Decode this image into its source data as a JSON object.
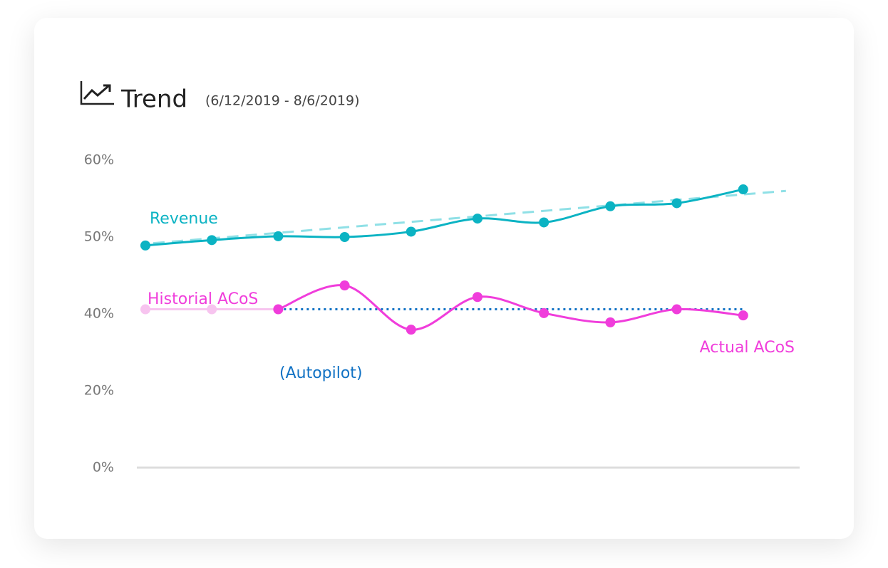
{
  "chart_data": {
    "type": "line",
    "title": "Trend",
    "subtitle": "(6/12/2019 - 8/6/2019)",
    "categories": [
      null,
      null,
      null,
      null,
      null,
      null,
      null,
      null,
      null,
      null
    ],
    "ylim": [
      0,
      60
    ],
    "yticks": [
      {
        "value": 0,
        "label": "0%"
      },
      {
        "value": 20,
        "label": "20%"
      },
      {
        "value": 40,
        "label": "40%"
      },
      {
        "value": 50,
        "label": "50%"
      },
      {
        "value": 60,
        "label": "60%"
      }
    ],
    "series": [
      {
        "name": "Revenue",
        "color": "#0bb3c3",
        "values": [
          48.9,
          49.6,
          50.1,
          50.0,
          50.7,
          52.4,
          51.9,
          54.0,
          54.4,
          56.2
        ]
      },
      {
        "name": "Historial ACoS",
        "color": "#f7c4ef",
        "values": [
          40.6,
          40.6,
          40.6,
          null,
          null,
          null,
          null,
          null,
          null,
          null
        ]
      },
      {
        "name": "(Autopilot)",
        "color": "#1172c4",
        "dash": "dotted",
        "markers": false,
        "values": [
          null,
          null,
          40.6,
          40.6,
          40.6,
          40.6,
          40.6,
          40.6,
          40.6,
          40.6
        ]
      },
      {
        "name": "Actual ACoS",
        "color": "#f03ddb",
        "values": [
          null,
          null,
          40.6,
          43.7,
          35.9,
          42.2,
          40.1,
          37.8,
          40.6,
          39.6
        ]
      }
    ],
    "trendline": {
      "start": 49.2,
      "end": 56.0,
      "color": "#8fe0e6",
      "dash": "dashed"
    }
  }
}
